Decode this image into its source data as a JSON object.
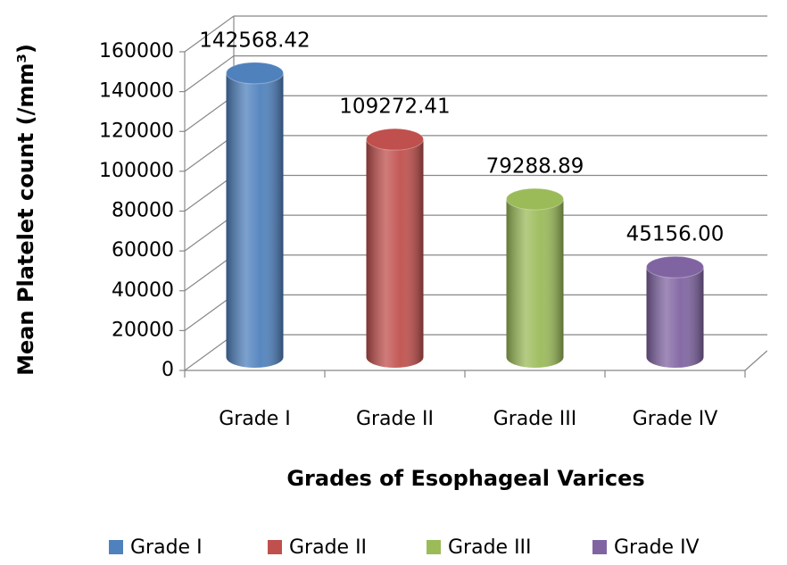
{
  "chart_data": {
    "type": "bar",
    "y_axis_label": "Mean Platelet count (/mm³)",
    "x_axis_label": "Grades of Esophageal Varices",
    "categories": [
      "Grade I",
      "Grade II",
      "Grade III",
      "Grade IV"
    ],
    "values": [
      142568.42,
      109272.41,
      79288.89,
      45156.0
    ],
    "value_labels": [
      "142568.42",
      "109272.41",
      "79288.89",
      "45156.00"
    ],
    "colors": [
      "#4f81bd",
      "#c0504d",
      "#9bbb59",
      "#8064a2"
    ],
    "ylim": [
      0,
      160000
    ],
    "yticks": [
      0,
      20000,
      40000,
      60000,
      80000,
      100000,
      120000,
      140000,
      160000
    ],
    "grid": true,
    "legend": "bottom"
  }
}
